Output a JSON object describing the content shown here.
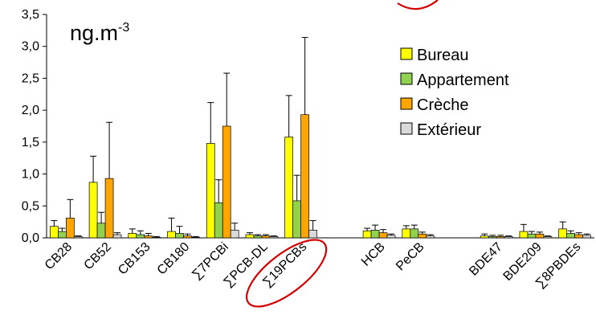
{
  "chart_data": {
    "type": "bar",
    "unit_base": "ng.m",
    "unit_exp": "-3",
    "ylim": [
      0,
      3.5
    ],
    "yticks": [
      "0,0",
      "0,5",
      "1,0",
      "1,5",
      "2,0",
      "2,5",
      "3,0",
      "3,5"
    ],
    "categories": [
      "CB28",
      "CB52",
      "CB153",
      "CB180",
      "∑7PCBi",
      "∑PCB-DL",
      "∑19PCBs",
      "",
      "HCB",
      "PeCB",
      "",
      "BDE47",
      "BDE209",
      "∑8PBDEs"
    ],
    "series": [
      {
        "name": "Bureau",
        "color": "#ffff00",
        "values": [
          0.18,
          0.87,
          0.07,
          0.1,
          1.48,
          0.05,
          1.58,
          null,
          0.11,
          0.14,
          null,
          0.03,
          0.1,
          0.14
        ],
        "errors": [
          0.09,
          0.41,
          0.07,
          0.21,
          0.64,
          0.03,
          0.65,
          null,
          0.04,
          0.05,
          null,
          0.03,
          0.11,
          0.11
        ]
      },
      {
        "name": "Appartement",
        "color": "#92d050",
        "values": [
          0.1,
          0.23,
          0.05,
          0.07,
          0.55,
          0.03,
          0.58,
          null,
          0.12,
          0.14,
          null,
          0.02,
          0.06,
          0.07
        ],
        "errors": [
          0.05,
          0.17,
          0.06,
          0.11,
          0.36,
          0.02,
          0.4,
          null,
          0.08,
          0.06,
          null,
          0.02,
          0.04,
          0.04
        ]
      },
      {
        "name": "Crèche",
        "color": "#ffa500",
        "values": [
          0.31,
          0.93,
          0.03,
          0.03,
          1.75,
          0.03,
          1.93,
          null,
          0.08,
          0.06,
          null,
          0.02,
          0.06,
          0.05
        ],
        "errors": [
          0.29,
          0.88,
          0.04,
          0.03,
          0.83,
          0.02,
          1.21,
          null,
          0.05,
          0.03,
          null,
          0.02,
          0.03,
          0.03
        ]
      },
      {
        "name": "Extérieur",
        "color": "#d9d9d9",
        "values": [
          0.02,
          0.05,
          0.01,
          0.01,
          0.12,
          0.02,
          0.12,
          null,
          0.04,
          0.03,
          null,
          0.02,
          0.02,
          0.04
        ],
        "errors": [
          0.01,
          0.03,
          0.01,
          0.01,
          0.11,
          0.01,
          0.15,
          null,
          0.02,
          0.02,
          null,
          0.01,
          0.01,
          0.02
        ]
      }
    ],
    "highlighted_category": "∑19PCBs",
    "highlight_color": "#d40000",
    "legend_position": "right"
  }
}
